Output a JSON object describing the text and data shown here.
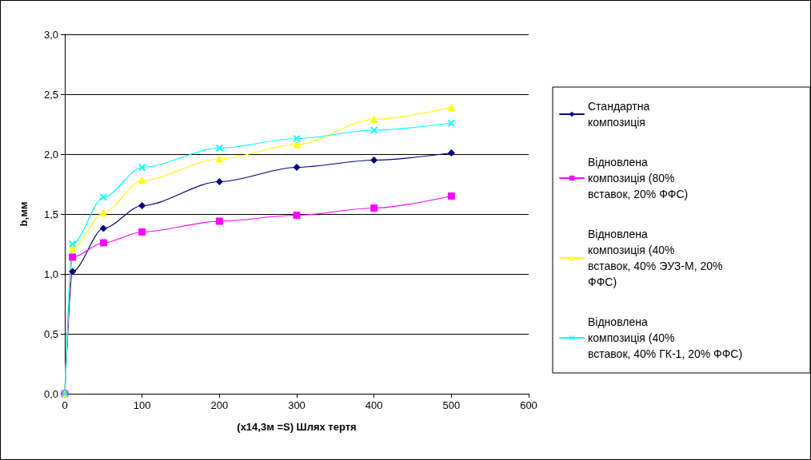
{
  "chart_data": {
    "type": "line",
    "xlabel": "(x14,3м =S) Шлях тертя",
    "ylabel": "b,мм",
    "x": [
      0,
      10,
      50,
      100,
      200,
      300,
      400,
      500
    ],
    "xlim": [
      0,
      600
    ],
    "xticks": [
      0,
      100,
      200,
      300,
      400,
      500,
      600
    ],
    "ylim": [
      0,
      3
    ],
    "yticks": [
      {
        "value": 0,
        "label": "0,0"
      },
      {
        "value": 0.5,
        "label": "0,5"
      },
      {
        "value": 1,
        "label": "1,0"
      },
      {
        "value": 1.5,
        "label": "1,5"
      },
      {
        "value": 2,
        "label": "2,0"
      },
      {
        "value": 2.5,
        "label": "2,5"
      },
      {
        "value": 3,
        "label": "3,0"
      }
    ],
    "grid": "y",
    "legend": "right",
    "line_style": "solid",
    "series": [
      {
        "name": "Стандартна композиція",
        "color": "#000080",
        "marker": "diamond",
        "values": [
          0,
          1.02,
          1.38,
          1.57,
          1.77,
          1.89,
          1.95,
          2.01
        ]
      },
      {
        "name": "Відновлена композиція (80% вставок, 20% ФФС)",
        "color": "#ff00ff",
        "marker": "square",
        "values": [
          0,
          1.14,
          1.26,
          1.35,
          1.44,
          1.49,
          1.55,
          1.65
        ]
      },
      {
        "name": "Відновлена композиція (40% вставок, 40% ЭУЗ-М, 20% ФФС)",
        "color": "#ffff00",
        "marker": "triangle",
        "values": [
          0,
          1.21,
          1.51,
          1.78,
          1.96,
          2.08,
          2.29,
          2.39
        ]
      },
      {
        "name": "Відновлена композиція (40% вставок, 40% ГК-1, 20% ФФС)",
        "color": "#00ffff",
        "marker": "cross",
        "values": [
          0,
          1.25,
          1.64,
          1.89,
          2.05,
          2.13,
          2.2,
          2.26
        ]
      }
    ]
  }
}
